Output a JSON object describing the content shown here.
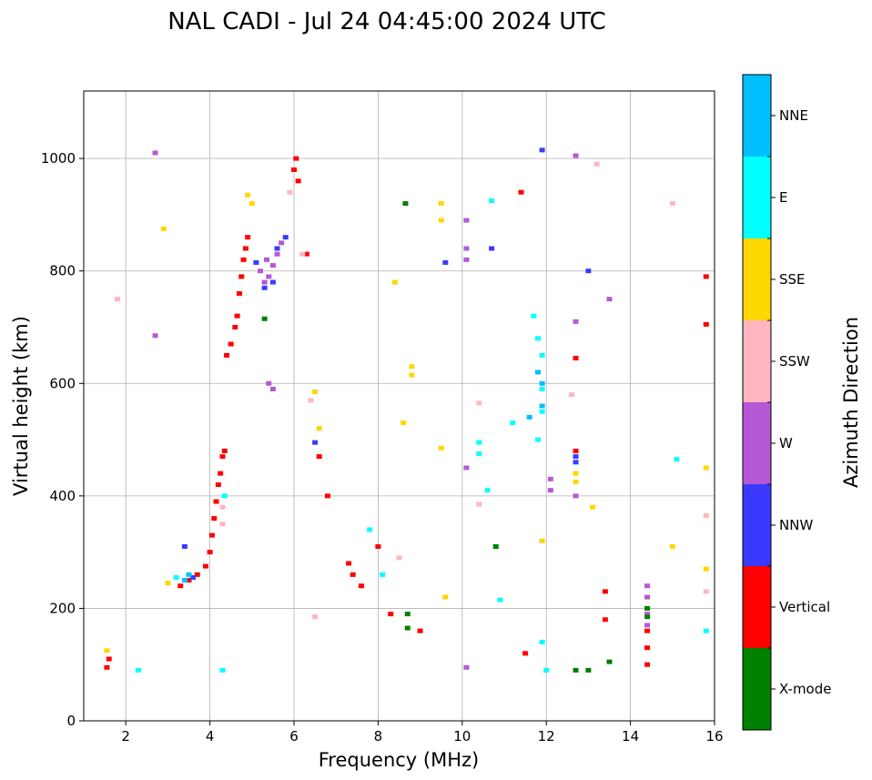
{
  "chart_data": {
    "type": "scatter",
    "title": "NAL CADI - Jul 24 04:45:00 2024 UTC",
    "xlabel": "Frequency (MHz)",
    "ylabel": "Virtual height (km)",
    "xlim": [
      1,
      16
    ],
    "ylim": [
      0,
      1120
    ],
    "xticks": [
      2,
      4,
      6,
      8,
      10,
      12,
      14,
      16
    ],
    "yticks": [
      0,
      200,
      400,
      600,
      800,
      1000
    ],
    "grid": true,
    "colorbar": {
      "label": "Azimuth Direction",
      "categories": [
        {
          "name": "X-mode",
          "color": "#008000"
        },
        {
          "name": "Vertical",
          "color": "#ff0000"
        },
        {
          "name": "NNW",
          "color": "#3a3aff"
        },
        {
          "name": "W",
          "color": "#b558d6"
        },
        {
          "name": "SSW",
          "color": "#ffb6c1"
        },
        {
          "name": "SSE",
          "color": "#ffd700"
        },
        {
          "name": "E",
          "color": "#00ffff"
        },
        {
          "name": "NNE",
          "color": "#00bfff"
        }
      ]
    },
    "series": [
      {
        "name": "Vertical",
        "points": [
          [
            1.55,
            95
          ],
          [
            1.6,
            110
          ],
          [
            3.3,
            240
          ],
          [
            3.5,
            250
          ],
          [
            3.7,
            260
          ],
          [
            3.9,
            275
          ],
          [
            4.0,
            300
          ],
          [
            4.05,
            330
          ],
          [
            4.1,
            360
          ],
          [
            4.15,
            390
          ],
          [
            4.2,
            420
          ],
          [
            4.25,
            440
          ],
          [
            4.3,
            470
          ],
          [
            4.35,
            480
          ],
          [
            4.4,
            650
          ],
          [
            4.5,
            670
          ],
          [
            4.6,
            700
          ],
          [
            4.65,
            720
          ],
          [
            4.7,
            760
          ],
          [
            4.75,
            790
          ],
          [
            4.8,
            820
          ],
          [
            4.85,
            840
          ],
          [
            4.9,
            860
          ],
          [
            6.0,
            980
          ],
          [
            6.05,
            1000
          ],
          [
            6.1,
            960
          ],
          [
            6.3,
            830
          ],
          [
            6.6,
            470
          ],
          [
            6.8,
            400
          ],
          [
            7.3,
            280
          ],
          [
            7.4,
            260
          ],
          [
            7.6,
            240
          ],
          [
            8.0,
            310
          ],
          [
            8.3,
            190
          ],
          [
            9.0,
            160
          ],
          [
            11.4,
            940
          ],
          [
            11.5,
            120
          ],
          [
            12.7,
            645
          ],
          [
            12.7,
            480
          ],
          [
            13.4,
            230
          ],
          [
            13.4,
            180
          ],
          [
            14.4,
            160
          ],
          [
            14.4,
            130
          ],
          [
            14.4,
            100
          ],
          [
            15.8,
            790
          ],
          [
            15.8,
            705
          ]
        ]
      },
      {
        "name": "W",
        "points": [
          [
            2.7,
            1010
          ],
          [
            2.7,
            685
          ],
          [
            5.2,
            800
          ],
          [
            5.3,
            780
          ],
          [
            5.35,
            820
          ],
          [
            5.4,
            790
          ],
          [
            5.5,
            810
          ],
          [
            5.6,
            830
          ],
          [
            5.7,
            850
          ],
          [
            5.4,
            600
          ],
          [
            5.5,
            590
          ],
          [
            10.1,
            890
          ],
          [
            10.1,
            840
          ],
          [
            10.1,
            820
          ],
          [
            10.1,
            450
          ],
          [
            10.1,
            95
          ],
          [
            12.1,
            410
          ],
          [
            12.1,
            430
          ],
          [
            12.7,
            1005
          ],
          [
            12.7,
            710
          ],
          [
            12.7,
            400
          ],
          [
            13.5,
            750
          ],
          [
            14.4,
            240
          ],
          [
            14.4,
            220
          ],
          [
            14.4,
            190
          ],
          [
            14.4,
            170
          ]
        ]
      },
      {
        "name": "NNW",
        "points": [
          [
            3.4,
            310
          ],
          [
            3.6,
            255
          ],
          [
            5.1,
            815
          ],
          [
            5.3,
            770
          ],
          [
            5.5,
            780
          ],
          [
            5.6,
            840
          ],
          [
            5.8,
            860
          ],
          [
            6.5,
            495
          ],
          [
            9.6,
            815
          ],
          [
            10.7,
            840
          ],
          [
            11.9,
            1015
          ],
          [
            12.7,
            470
          ],
          [
            12.7,
            460
          ],
          [
            13.0,
            800
          ]
        ]
      },
      {
        "name": "SSW",
        "points": [
          [
            1.8,
            750
          ],
          [
            4.3,
            350
          ],
          [
            4.3,
            380
          ],
          [
            5.9,
            940
          ],
          [
            6.2,
            830
          ],
          [
            6.4,
            570
          ],
          [
            6.5,
            185
          ],
          [
            8.5,
            290
          ],
          [
            10.4,
            565
          ],
          [
            10.4,
            385
          ],
          [
            12.6,
            580
          ],
          [
            13.2,
            990
          ],
          [
            15.0,
            920
          ],
          [
            15.8,
            365
          ],
          [
            15.8,
            230
          ]
        ]
      },
      {
        "name": "SSE",
        "points": [
          [
            1.55,
            125
          ],
          [
            2.9,
            875
          ],
          [
            3.0,
            245
          ],
          [
            4.9,
            935
          ],
          [
            5.0,
            920
          ],
          [
            6.5,
            585
          ],
          [
            6.6,
            520
          ],
          [
            8.4,
            780
          ],
          [
            8.8,
            630
          ],
          [
            8.8,
            615
          ],
          [
            8.6,
            530
          ],
          [
            9.5,
            920
          ],
          [
            9.5,
            890
          ],
          [
            9.5,
            485
          ],
          [
            9.6,
            220
          ],
          [
            11.9,
            320
          ],
          [
            12.7,
            440
          ],
          [
            12.7,
            425
          ],
          [
            13.1,
            380
          ],
          [
            15.0,
            310
          ],
          [
            15.8,
            450
          ],
          [
            15.8,
            270
          ]
        ]
      },
      {
        "name": "E",
        "points": [
          [
            2.3,
            90
          ],
          [
            3.2,
            255
          ],
          [
            4.3,
            90
          ],
          [
            4.35,
            400
          ],
          [
            7.8,
            340
          ],
          [
            8.1,
            260
          ],
          [
            10.4,
            495
          ],
          [
            10.4,
            475
          ],
          [
            10.6,
            410
          ],
          [
            10.7,
            925
          ],
          [
            10.8,
            310
          ],
          [
            10.9,
            215
          ],
          [
            11.2,
            530
          ],
          [
            11.7,
            720
          ],
          [
            11.8,
            680
          ],
          [
            11.9,
            650
          ],
          [
            11.9,
            590
          ],
          [
            11.9,
            550
          ],
          [
            11.8,
            500
          ],
          [
            11.9,
            140
          ],
          [
            12.0,
            90
          ],
          [
            15.1,
            465
          ],
          [
            15.8,
            160
          ]
        ]
      },
      {
        "name": "NNE",
        "points": [
          [
            3.4,
            250
          ],
          [
            3.5,
            260
          ],
          [
            11.6,
            540
          ],
          [
            11.8,
            620
          ],
          [
            11.9,
            600
          ],
          [
            11.9,
            560
          ]
        ]
      },
      {
        "name": "X-mode",
        "points": [
          [
            5.3,
            715
          ],
          [
            8.65,
            920
          ],
          [
            8.7,
            190
          ],
          [
            8.7,
            165
          ],
          [
            10.8,
            310
          ],
          [
            12.7,
            90
          ],
          [
            13.0,
            90
          ],
          [
            13.5,
            105
          ],
          [
            14.4,
            200
          ],
          [
            14.4,
            185
          ]
        ]
      }
    ]
  }
}
